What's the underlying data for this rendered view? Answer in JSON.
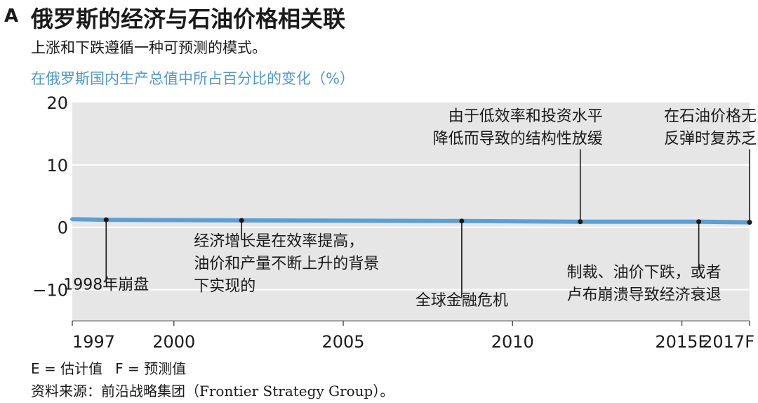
{
  "panel_letter": "A",
  "title": "俄罗斯的经济与石油价格相关联",
  "subtitle": "上涨和下跌遵循一种可预测的模式。",
  "footnote": {
    "e": "E = 估计值",
    "f": "F = 预测值"
  },
  "source": "资料来源：前沿战略集团（Frontier Strategy Group）。",
  "colors": {
    "line": "#5d9fd3",
    "plot_bg": "#e6e6e6",
    "gridline": "#ffffff",
    "ylabel": "#4f97cf"
  },
  "chart_data": {
    "type": "line",
    "ylabel": "在俄罗斯国内生产总值中所占百分比的变化（%）",
    "xlim": [
      1997,
      2017
    ],
    "ylim": [
      -15,
      20
    ],
    "y_ticks": [
      20,
      10,
      0,
      -10
    ],
    "y_tick_labels": [
      "20",
      "10",
      "0",
      "−10"
    ],
    "x_ticks": [
      1997,
      2000,
      2005,
      2010,
      2015,
      2017
    ],
    "x_tick_labels": [
      "1997",
      "2000",
      "2005",
      "2010",
      "2015E",
      "2017F"
    ],
    "grid": true,
    "series": [
      {
        "x": [
          1997,
          1998,
          2002,
          2008.5,
          2012,
          2015.5,
          2017
        ],
        "y": [
          1.3,
          1.2,
          1.1,
          1.0,
          0.9,
          0.9,
          0.8
        ]
      }
    ],
    "annotations": [
      {
        "x": 1998,
        "y_point": 1.2,
        "y_text": -10,
        "anchor": "center",
        "lines": [
          "1998年崩盘"
        ]
      },
      {
        "x": 2002,
        "y_point": 1.1,
        "y_text": -3,
        "anchor": "left-of-line",
        "lines": [
          "经济增长是在效率提高，",
          "油价和产量不断上升的背景",
          "下实现的"
        ]
      },
      {
        "x": 2008.5,
        "y_point": 1.0,
        "y_text": -12.5,
        "anchor": "center",
        "lines": [
          "全球金融危机"
        ]
      },
      {
        "x": 2012,
        "y_point": 0.9,
        "y_text": 17,
        "anchor": "right-of-line",
        "lines": [
          "由于低效率和投资水平",
          "降低而导致的结构性放缓"
        ]
      },
      {
        "x": 2015.5,
        "y_point": 0.9,
        "y_text": -8,
        "anchor": "right-of-line",
        "lines": [
          "制裁、油价下跌，或者",
          "卢布崩溃导致经济衰退"
        ]
      },
      {
        "x": 2017,
        "y_point": 0.8,
        "y_text": 17,
        "anchor": "right-of-line",
        "lines": [
          "在石油价格无力",
          "反弹时复苏乏力"
        ]
      }
    ]
  }
}
